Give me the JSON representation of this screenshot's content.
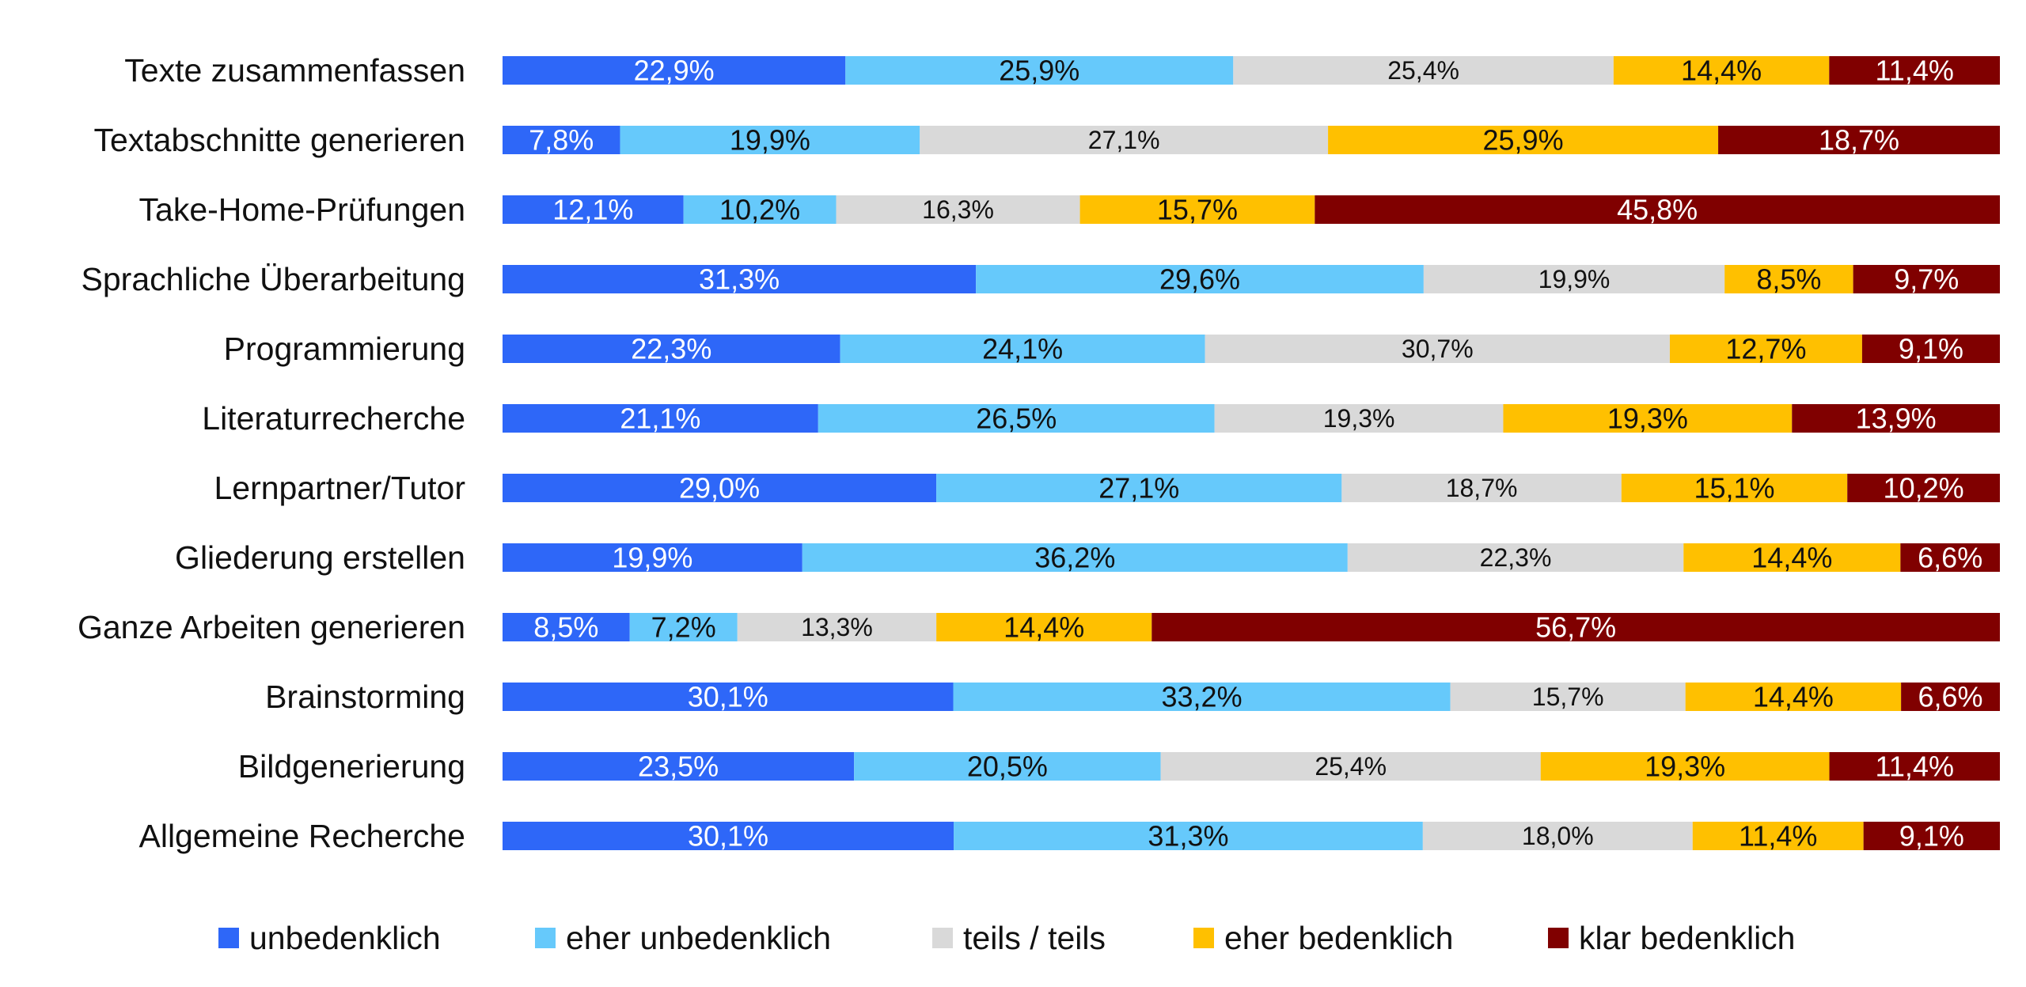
{
  "chart_data": {
    "type": "bar",
    "orientation": "horizontal",
    "stacked": true,
    "percent": true,
    "categories": [
      "Texte zusammenfassen",
      "Textabschnitte generieren",
      "Take-Home-Prüfungen",
      "Sprachliche Überarbeitung",
      "Programmierung",
      "Literaturrecherche",
      "Lernpartner/Tutor",
      "Gliederung erstellen",
      "Ganze Arbeiten generieren",
      "Brainstorming",
      "Bildgenerierung",
      "Allgemeine Recherche"
    ],
    "series": [
      {
        "name": "unbedenklich",
        "color": "#2e67f8",
        "label_color": "#ffffff",
        "values": [
          22.9,
          7.8,
          12.1,
          31.3,
          22.3,
          21.1,
          29.0,
          19.9,
          8.5,
          30.1,
          23.5,
          30.1
        ],
        "labels": [
          "22,9%",
          "7,8%",
          "12,1%",
          "31,3%",
          "22,3%",
          "21,1%",
          "29,0%",
          "19,9%",
          "8,5%",
          "30,1%",
          "23,5%",
          "30,1%"
        ]
      },
      {
        "name": "eher unbedenklich",
        "color": "#66c9fb",
        "label_color": "#111111",
        "values": [
          25.9,
          19.9,
          10.2,
          29.6,
          24.1,
          26.5,
          27.1,
          36.2,
          7.2,
          33.2,
          20.5,
          31.3
        ],
        "labels": [
          "25,9%",
          "19,9%",
          "10,2%",
          "29,6%",
          "24,1%",
          "26,5%",
          "27,1%",
          "36,2%",
          "7,2%",
          "33,2%",
          "20,5%",
          "31,3%"
        ]
      },
      {
        "name": "teils / teils",
        "color": "#d9d9d9",
        "label_color": "#111111",
        "values": [
          25.4,
          27.1,
          16.3,
          19.9,
          30.7,
          19.3,
          18.7,
          22.3,
          13.3,
          15.7,
          25.4,
          18.0
        ],
        "labels": [
          "25,4%",
          "27,1%",
          "16,3%",
          "19,9%",
          "30,7%",
          "19,3%",
          "18,7%",
          "22,3%",
          "13,3%",
          "15,7%",
          "25,4%",
          "18,0%"
        ]
      },
      {
        "name": "eher bedenklich",
        "color": "#ffc000",
        "label_color": "#111111",
        "values": [
          14.4,
          25.9,
          15.7,
          8.5,
          12.7,
          19.3,
          15.1,
          14.4,
          14.4,
          14.4,
          19.3,
          11.4
        ],
        "labels": [
          "14,4%",
          "25,9%",
          "15,7%",
          "8,5%",
          "12,7%",
          "19,3%",
          "15,1%",
          "14,4%",
          "14,4%",
          "14,4%",
          "19,3%",
          "11,4%"
        ]
      },
      {
        "name": "klar bedenklich",
        "color": "#800000",
        "label_color": "#ffffff",
        "values": [
          11.4,
          18.7,
          45.8,
          9.7,
          9.1,
          13.9,
          10.2,
          6.6,
          56.7,
          6.6,
          11.4,
          9.1
        ],
        "labels": [
          "11,4%",
          "18,7%",
          "45,8%",
          "9,7%",
          "9,1%",
          "13,9%",
          "10,2%",
          "6,6%",
          "56,7%",
          "6,6%",
          "11,4%",
          "9,1%"
        ]
      }
    ],
    "xlim": [
      0,
      100
    ],
    "grid": false,
    "legend_position": "bottom",
    "title": "",
    "xlabel": "",
    "ylabel": ""
  }
}
